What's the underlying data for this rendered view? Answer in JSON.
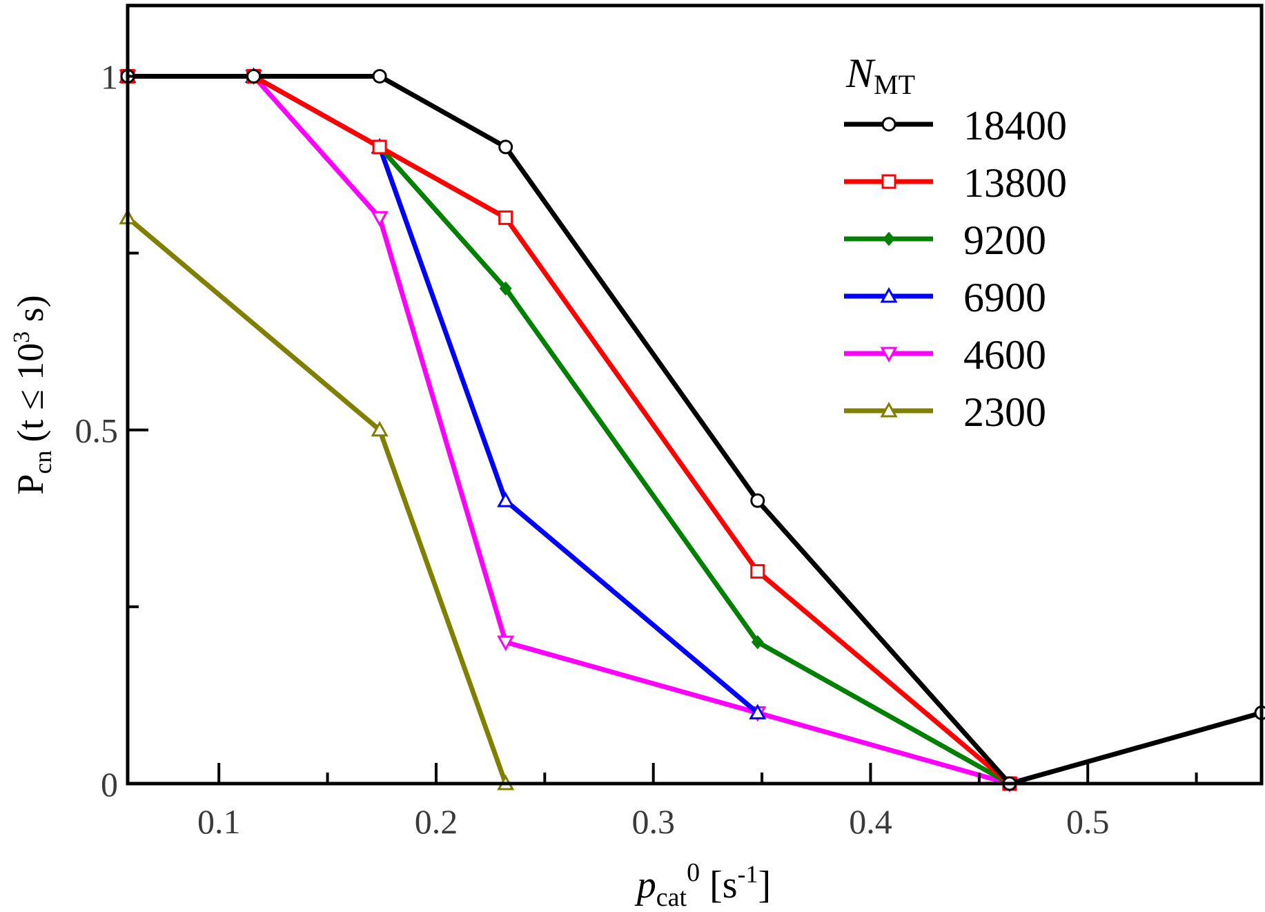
{
  "chart_data": {
    "type": "line",
    "title": "",
    "xlabel": {
      "main": "p",
      "sub": "cat",
      "sup": "0",
      "unit": "[s",
      "unit_sup": "-1",
      "unit_close": "]"
    },
    "ylabel": {
      "main": "P",
      "sub": "cn",
      "condition_open": "(t ≤ 10",
      "condition_sup": "3",
      "condition_close": " s)"
    },
    "xlim": [
      0.058,
      0.58
    ],
    "ylim": [
      0,
      1.1
    ],
    "x_ticks": [
      0.1,
      0.2,
      0.3,
      0.4,
      0.5
    ],
    "x_tick_labels": [
      "0.1",
      "0.2",
      "0.3",
      "0.4",
      "0.5"
    ],
    "x_minor_ticks": [
      0.15,
      0.25,
      0.35,
      0.45,
      0.55
    ],
    "y_ticks": [
      0,
      0.5,
      1
    ],
    "y_tick_labels": [
      "0",
      "0.5",
      "1"
    ],
    "y_minor_ticks": [
      0.25,
      0.75
    ],
    "legend": {
      "title_main": "N",
      "title_sub": "MT",
      "position": "top-right"
    },
    "series": [
      {
        "name": "18400",
        "color": "#000000",
        "marker": "circle",
        "x": [
          0.058,
          0.116,
          0.174,
          0.232,
          0.348,
          0.464,
          0.58
        ],
        "y": [
          1.0,
          1.0,
          1.0,
          0.9,
          0.4,
          0.0,
          0.1
        ]
      },
      {
        "name": "13800",
        "color": "#ff0000",
        "marker": "square",
        "x": [
          0.058,
          0.116,
          0.174,
          0.232,
          0.348,
          0.464
        ],
        "y": [
          1.0,
          1.0,
          0.9,
          0.8,
          0.3,
          0.0
        ]
      },
      {
        "name": "9200",
        "color": "#008000",
        "marker": "diamond",
        "x": [
          0.174,
          0.232,
          0.348,
          0.464
        ],
        "y": [
          0.9,
          0.7,
          0.2,
          0.0
        ]
      },
      {
        "name": "6900",
        "color": "#0000ff",
        "marker": "triangle-up",
        "x": [
          0.058,
          0.116,
          0.174,
          0.232,
          0.348
        ],
        "y": [
          1.0,
          1.0,
          0.9,
          0.4,
          0.1
        ]
      },
      {
        "name": "4600",
        "color": "#ff00ff",
        "marker": "triangle-down",
        "x": [
          0.058,
          0.116,
          0.174,
          0.232,
          0.348,
          0.464
        ],
        "y": [
          1.0,
          1.0,
          0.8,
          0.2,
          0.1,
          0.0
        ]
      },
      {
        "name": "2300",
        "color": "#808000",
        "marker": "triangle-up",
        "x": [
          0.058,
          0.174,
          0.232
        ],
        "y": [
          0.8,
          0.5,
          0.0
        ]
      }
    ]
  }
}
